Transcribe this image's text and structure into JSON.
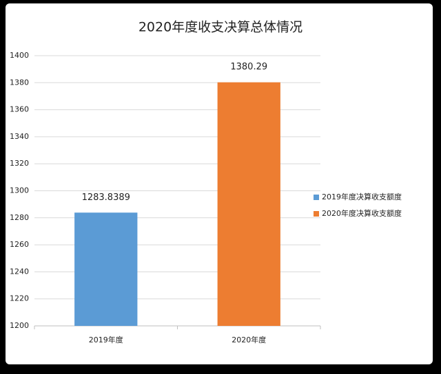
{
  "chart_data": {
    "type": "bar",
    "title": "2020年度收支决算总体情况",
    "categories": [
      "2019年度",
      "2020年度"
    ],
    "series": [
      {
        "name": "2019年度决算收支额度",
        "color": "#5b9bd5",
        "values": [
          1283.8389,
          null
        ]
      },
      {
        "name": "2020年度决算收支额度",
        "color": "#ed7d31",
        "values": [
          null,
          1380.29
        ]
      }
    ],
    "ylim": [
      1200,
      1400
    ],
    "yticks": [
      1200,
      1220,
      1240,
      1260,
      1280,
      1300,
      1320,
      1340,
      1360,
      1380,
      1400
    ],
    "grid": true,
    "legend": "right"
  }
}
